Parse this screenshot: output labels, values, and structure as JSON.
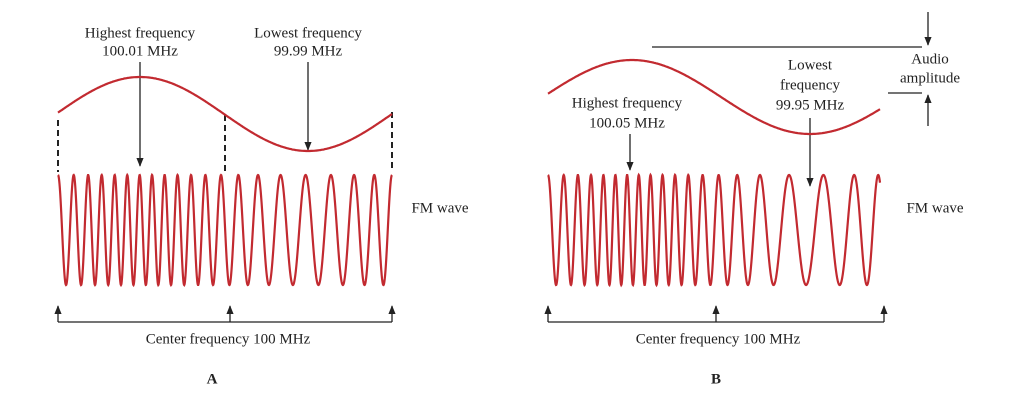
{
  "panels": [
    {
      "label": "A",
      "highest_label": [
        "Highest frequency",
        "100.01 MHz"
      ],
      "lowest_label": [
        "Lowest frequency",
        "99.99 MHz"
      ],
      "wave_label": "FM wave",
      "center_label": "Center frequency 100 MHz"
    },
    {
      "label": "B",
      "highest_label": [
        "Highest frequency",
        "100.05 MHz"
      ],
      "lowest_label": [
        "Lowest",
        "frequency",
        "99.95 MHz"
      ],
      "audio_label": [
        "Audio",
        "amplitude"
      ],
      "wave_label": "FM wave",
      "center_label": "Center frequency 100 MHz"
    }
  ]
}
